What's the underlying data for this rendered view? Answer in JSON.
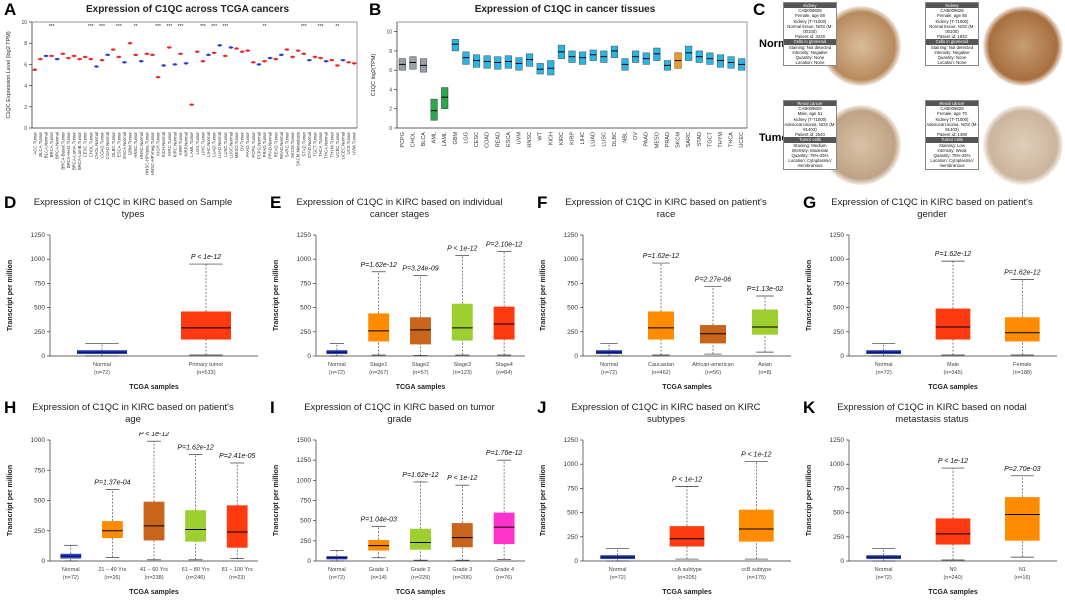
{
  "chart_data": [
    {
      "type": "strip",
      "panel": "A",
      "title": "Expression of C1QC across TCGA cancers",
      "ylabel": "C1QC Expression Level (log2 TPM)",
      "categories": [
        "ACC.Tumor",
        "BLCA.Tumor",
        "BLCA.Normal",
        "BRCA.Tumor",
        "BRCA.Normal",
        "BRCA-Basal.Tumor",
        "BRCA-Her2.Tumor",
        "BRCA-LumA.Tumor",
        "BRCA-LumB.Tumor",
        "CESC.Tumor",
        "CHOL.Tumor",
        "CHOL.Normal",
        "COAD.Tumor",
        "COAD.Normal",
        "DLBC.Tumor",
        "ESCA.Tumor",
        "ESCA.Normal",
        "GBM.Tumor",
        "HNSC.Tumor",
        "HNSC.Normal",
        "HNSC-HPVpos.Tumor",
        "HNSC-HPVneg.Tumor",
        "KICH.Tumor",
        "KICH.Normal",
        "KIRC.Tumor",
        "KIRC.Normal",
        "KIRP.Tumor",
        "KIRP.Normal",
        "LAML.Tumor",
        "LGG.Tumor",
        "LIHC.Tumor",
        "LIHC.Normal",
        "LUAD.Tumor",
        "LUAD.Normal",
        "LUSC.Tumor",
        "LUSC.Normal",
        "MESO.Tumor",
        "OV.Tumor",
        "PAAD.Tumor",
        "PCPG.Tumor",
        "PCPG.Normal",
        "PRAD.Tumor",
        "PRAD.Normal",
        "READ.Tumor",
        "READ.Normal",
        "SARC.Tumor",
        "SKCM.Tumor",
        "SKCM.Metastasis",
        "STAD.Tumor",
        "STAD.Normal",
        "TGCT.Tumor",
        "THCA.Tumor",
        "THCA.Normal",
        "THYM.Tumor",
        "UCEC.Tumor",
        "UCEC.Normal",
        "UCS.Tumor",
        "UVM.Tumor"
      ],
      "values": [
        5.5,
        6.5,
        6.8,
        6.8,
        6.5,
        7.0,
        6.6,
        6.8,
        6.5,
        6.7,
        6.5,
        5.8,
        6.4,
        6.9,
        7.4,
        6.7,
        6.2,
        8.0,
        6.9,
        6.3,
        7.0,
        6.9,
        4.8,
        5.9,
        7.6,
        6.0,
        7.0,
        6.1,
        2.2,
        7.2,
        6.3,
        6.9,
        7.1,
        7.8,
        6.8,
        7.6,
        7.5,
        7.2,
        7.3,
        6.2,
        6.0,
        6.3,
        6.6,
        6.5,
        6.9,
        7.4,
        6.7,
        7.3,
        7.0,
        6.4,
        6.7,
        6.6,
        6.3,
        6.4,
        5.9,
        6.4,
        6.2,
        6.1
      ],
      "significance": [
        null,
        null,
        null,
        "***",
        null,
        null,
        null,
        null,
        null,
        null,
        "***",
        null,
        "***",
        null,
        null,
        "***",
        null,
        null,
        "**",
        null,
        null,
        null,
        "***",
        null,
        "***",
        null,
        "***",
        null,
        null,
        null,
        "***",
        null,
        "***",
        null,
        "***",
        null,
        null,
        null,
        null,
        null,
        null,
        "**",
        null,
        null,
        null,
        null,
        null,
        null,
        "***",
        null,
        null,
        "***",
        null,
        null,
        "**",
        null,
        null,
        null
      ],
      "tumor_color": "#e8282b",
      "normal_color": "#2b3fd6",
      "ylim": [
        0,
        10
      ],
      "yticks": [
        0,
        2,
        4,
        6,
        8,
        10
      ]
    },
    {
      "type": "box",
      "panel": "B",
      "title": "Expression of C1QC in cancer tissues",
      "ylabel": "C1QC log2(TPM)",
      "categories": [
        "PCPG",
        "CHOL",
        "BLCA",
        "AML",
        "LAML",
        "GBM",
        "LGG",
        "CESC",
        "COAD",
        "READ",
        "ESCA",
        "UVM",
        "HNSC",
        "WT",
        "KICH",
        "KIRC",
        "KIRP",
        "LIHC",
        "LUAD",
        "LUSC",
        "DLBC",
        "NBL",
        "OV",
        "PAAD",
        "MESO",
        "PRAD",
        "SKCM",
        "SARC",
        "STAD",
        "TGCT",
        "THYM",
        "THCA",
        "UCEC"
      ],
      "q1": [
        6.0,
        6.1,
        5.8,
        0.8,
        2.0,
        8.0,
        6.6,
        6.3,
        6.2,
        6.1,
        6.2,
        6.0,
        6.4,
        5.6,
        5.5,
        7.2,
        6.8,
        6.6,
        7.0,
        6.8,
        7.3,
        6.0,
        6.8,
        6.6,
        7.0,
        6.0,
        6.2,
        7.0,
        6.8,
        6.6,
        6.3,
        6.2,
        6.0
      ],
      "median": [
        6.6,
        6.8,
        6.5,
        1.8,
        3.2,
        8.7,
        7.3,
        7.0,
        6.9,
        6.8,
        6.9,
        6.7,
        7.1,
        6.1,
        6.2,
        7.9,
        7.4,
        7.3,
        7.6,
        7.4,
        8.0,
        6.6,
        7.4,
        7.2,
        7.7,
        6.5,
        7.0,
        7.8,
        7.4,
        7.2,
        7.0,
        6.8,
        6.6
      ],
      "q3": [
        7.2,
        7.4,
        7.2,
        3.0,
        4.2,
        9.2,
        7.9,
        7.6,
        7.5,
        7.4,
        7.5,
        7.3,
        7.7,
        6.7,
        7.0,
        8.6,
        8.0,
        7.9,
        8.1,
        8.0,
        8.5,
        7.2,
        8.0,
        7.8,
        8.3,
        7.0,
        7.8,
        8.5,
        8.0,
        7.8,
        7.6,
        7.4,
        7.2
      ],
      "colors": [
        "#9aa0a6",
        "#9aa0a6",
        "#9aa0a6",
        "#2aa84a",
        "#2aa84a",
        "#29b6e6",
        "#29b6e6",
        "#29b6e6",
        "#29b6e6",
        "#29b6e6",
        "#29b6e6",
        "#29b6e6",
        "#29b6e6",
        "#29b6e6",
        "#29b6e6",
        "#29b6e6",
        "#29b6e6",
        "#29b6e6",
        "#29b6e6",
        "#29b6e6",
        "#29b6e6",
        "#29b6e6",
        "#29b6e6",
        "#29b6e6",
        "#29b6e6",
        "#29b6e6",
        "#f29a1d",
        "#29b6e6",
        "#29b6e6",
        "#29b6e6",
        "#29b6e6",
        "#29b6e6",
        "#29b6e6"
      ],
      "ylim": [
        0,
        11
      ],
      "yticks": [
        0,
        2,
        4,
        6,
        8,
        10
      ]
    },
    {
      "type": "box",
      "panel": "D",
      "title": "Expression of C1QC in KIRC based on Sample types",
      "xlabel": "TCGA samples",
      "ylabel": "Transcript per million",
      "categories": [
        "Normal",
        "Primary tumor"
      ],
      "n_labels": [
        "(n=72)",
        "(n=533)"
      ],
      "colors": [
        "#2e46d1",
        "#ff3a10"
      ],
      "min": [
        0,
        10
      ],
      "q1": [
        20,
        170
      ],
      "median": [
        40,
        290
      ],
      "q3": [
        60,
        460
      ],
      "max": [
        130,
        950
      ],
      "p_labels": [
        null,
        "P < 1e-12"
      ],
      "ylim": [
        0,
        1250
      ],
      "yticks": [
        0,
        250,
        500,
        750,
        1000,
        1250
      ]
    },
    {
      "type": "box",
      "panel": "E",
      "title": "Expression of C1QC in KIRC based on individual cancer stages",
      "xlabel": "TCGA samples",
      "ylabel": "Transcript per million",
      "categories": [
        "Normal",
        "Stage1",
        "Stage2",
        "Stage3",
        "Stage4"
      ],
      "n_labels": [
        "(n=72)",
        "(n=267)",
        "(n=57)",
        "(n=123)",
        "(n=84)"
      ],
      "colors": [
        "#2e46d1",
        "#ff8c00",
        "#c8651b",
        "#9ccf2f",
        "#ff3a10"
      ],
      "min": [
        0,
        10,
        5,
        10,
        10
      ],
      "q1": [
        20,
        150,
        120,
        160,
        170
      ],
      "median": [
        40,
        260,
        270,
        290,
        330
      ],
      "q3": [
        60,
        440,
        400,
        540,
        510
      ],
      "max": [
        130,
        870,
        830,
        1040,
        1080
      ],
      "p_labels": [
        null,
        "P=1.62e-12",
        "P=3.24e-09",
        "P < 1e-12",
        "P=2.10e-12"
      ],
      "ylim": [
        0,
        1250
      ],
      "yticks": [
        0,
        250,
        500,
        750,
        1000,
        1250
      ]
    },
    {
      "type": "box",
      "panel": "F",
      "title": "Expression of C1QC in KIRC based on patient's race",
      "xlabel": "TCGA samples",
      "ylabel": "Transcript per million",
      "categories": [
        "Normal",
        "Caucasian",
        "African-american",
        "Asian"
      ],
      "n_labels": [
        "(n=72)",
        "(n=462)",
        "(n=56)",
        "(n=8)"
      ],
      "colors": [
        "#2e46d1",
        "#ff8c00",
        "#c8651b",
        "#9ccf2f"
      ],
      "min": [
        0,
        10,
        20,
        40
      ],
      "q1": [
        20,
        170,
        130,
        220
      ],
      "median": [
        40,
        290,
        230,
        300
      ],
      "q3": [
        60,
        460,
        320,
        480
      ],
      "max": [
        130,
        960,
        720,
        620
      ],
      "p_labels": [
        null,
        "P=1.62e-12",
        "P=2.27e-06",
        "P=1.13e-02"
      ],
      "ylim": [
        0,
        1250
      ],
      "yticks": [
        0,
        250,
        500,
        750,
        1000,
        1250
      ]
    },
    {
      "type": "box",
      "panel": "G",
      "title": "Expression of C1QC in KIRC based on patient's gender",
      "xlabel": "TCGA samples",
      "ylabel": "Transcript per million",
      "categories": [
        "Normal",
        "Male",
        "Female"
      ],
      "n_labels": [
        "(n=72)",
        "(n=345)",
        "(n=188)"
      ],
      "colors": [
        "#2e46d1",
        "#ff3a10",
        "#ff8c00"
      ],
      "min": [
        0,
        10,
        10
      ],
      "q1": [
        20,
        170,
        150
      ],
      "median": [
        40,
        300,
        240
      ],
      "q3": [
        60,
        490,
        400
      ],
      "max": [
        130,
        980,
        790
      ],
      "p_labels": [
        null,
        "P=1.62e-12",
        "P=1.62e-12"
      ],
      "ylim": [
        0,
        1250
      ],
      "yticks": [
        0,
        250,
        500,
        750,
        1000,
        1250
      ]
    },
    {
      "type": "box",
      "panel": "H",
      "title": "Expression of C1QC in KIRC based on patient's age",
      "xlabel": "TCGA samples",
      "ylabel": "Transcript per million",
      "categories": [
        "Normal",
        "21 – 40 Yrs",
        "41 – 60 Yrs",
        "61 – 80 Yrs",
        "81 – 100 Yrs"
      ],
      "n_labels": [
        "(n=72)",
        "(n=26)",
        "(n=238)",
        "(n=246)",
        "(n=23)"
      ],
      "colors": [
        "#2e46d1",
        "#ff8c00",
        "#c8651b",
        "#9ccf2f",
        "#ff3a10"
      ],
      "min": [
        0,
        30,
        10,
        10,
        20
      ],
      "q1": [
        20,
        190,
        170,
        160,
        110
      ],
      "median": [
        40,
        250,
        290,
        260,
        240
      ],
      "q3": [
        60,
        330,
        490,
        420,
        460
      ],
      "max": [
        130,
        590,
        990,
        880,
        810
      ],
      "p_labels": [
        null,
        "P=1.37e-04",
        "P < 1e-12",
        "P=1.62e-12",
        "P=2.41e-05"
      ],
      "ylim": [
        0,
        1000
      ],
      "yticks": [
        0,
        250,
        500,
        750,
        1000
      ]
    },
    {
      "type": "box",
      "panel": "I",
      "title": "Expression of C1QC in KIRC based on tumor grade",
      "xlabel": "TCGA samples",
      "ylabel": "Transcript per million",
      "categories": [
        "Normal",
        "Grade 1",
        "Grade 2",
        "Grade 3",
        "Grade 4"
      ],
      "n_labels": [
        "(n=72)",
        "(n=14)",
        "(n=229)",
        "(n=206)",
        "(n=76)"
      ],
      "colors": [
        "#2e46d1",
        "#ff8c00",
        "#9ccf2f",
        "#c8651b",
        "#ff33cc"
      ],
      "min": [
        0,
        40,
        10,
        10,
        20
      ],
      "q1": [
        20,
        130,
        140,
        170,
        210
      ],
      "median": [
        40,
        190,
        230,
        290,
        420
      ],
      "q3": [
        60,
        260,
        400,
        470,
        600
      ],
      "max": [
        130,
        430,
        980,
        940,
        1250
      ],
      "p_labels": [
        null,
        "P=1.04e-03",
        "P=1.62e-12",
        "P < 1e-12",
        "P=1.76e-12"
      ],
      "ylim": [
        0,
        1500
      ],
      "yticks": [
        0,
        250,
        500,
        750,
        1000,
        1250,
        1500
      ]
    },
    {
      "type": "box",
      "panel": "J",
      "title": "Expression of C1QC in KIRC based on KIRC subtypes",
      "xlabel": "TCGA samples",
      "ylabel": "Transcript per million",
      "categories": [
        "Normal",
        "ccA subtype",
        "ccB subtype"
      ],
      "n_labels": [
        "(n=72)",
        "(n=205)",
        "(n=175)"
      ],
      "colors": [
        "#2e46d1",
        "#ff3a10",
        "#ff8c00"
      ],
      "min": [
        0,
        20,
        20
      ],
      "q1": [
        20,
        150,
        200
      ],
      "median": [
        40,
        230,
        330
      ],
      "q3": [
        60,
        360,
        530
      ],
      "max": [
        130,
        770,
        1030
      ],
      "p_labels": [
        null,
        "P < 1e-12",
        "P < 1e-12"
      ],
      "ylim": [
        0,
        1250
      ],
      "yticks": [
        0,
        250,
        500,
        750,
        1000,
        1250
      ]
    },
    {
      "type": "box",
      "panel": "K",
      "title": "Expression of C1QC in KIRC based on nodal metastasis status",
      "xlabel": "TCGA samples",
      "ylabel": "Transcript per million",
      "categories": [
        "Normal",
        "N0",
        "N1"
      ],
      "n_labels": [
        "(n=72)",
        "(n=240)",
        "(n=16)"
      ],
      "colors": [
        "#2e46d1",
        "#ff3a10",
        "#ff8c00"
      ],
      "min": [
        0,
        10,
        40
      ],
      "q1": [
        20,
        170,
        210
      ],
      "median": [
        40,
        280,
        480
      ],
      "q3": [
        60,
        440,
        660
      ],
      "max": [
        130,
        960,
        880
      ],
      "p_labels": [
        null,
        "P < 1e-12",
        "P=2.70e-03"
      ],
      "ylim": [
        0,
        1250
      ],
      "yticks": [
        0,
        250,
        500,
        750,
        1000,
        1250
      ]
    }
  ],
  "panel_c": {
    "panel": "C",
    "rows": [
      "Normal",
      "Tumor"
    ],
    "cards": [
      {
        "lines": [
          "Kidney",
          "CAB009828",
          "Female, age 58",
          "Kidney (T-71000)",
          "Normal tissue, NOS (M-00100)",
          "Patient id: 3229",
          "Cells in glomeruli",
          "Staining: Not detected",
          "Intensity: Negative",
          "Quantity: None",
          "Location: None"
        ]
      },
      {
        "lines": [
          "Kidney",
          "CAB009828",
          "Female, age 56",
          "Kidney (T-71000)",
          "Normal tissue, NOS (M-00100)",
          "Patient id: 1933",
          "Cells in glomeruli",
          "Staining: Not detected",
          "Intensity: Negative",
          "Quantity: None",
          "Location: None"
        ]
      },
      {
        "lines": [
          "Renal cancer",
          "CAB009828",
          "Male, age 61",
          "Kidney (T-71000)",
          "Adenocarcinoma, NOS (M-81403)",
          "Patient id: 2540",
          "Tumor cells",
          "Staining: Medium",
          "Intensity: Moderate",
          "Quantity: 75%-25%",
          "Location: Cytoplasmic/ membranous"
        ]
      },
      {
        "lines": [
          "Renal cancer",
          "CAB009828",
          "Female, age 70",
          "Kidney (T-71000)",
          "Adenocarcinoma, NOS (M-81403)",
          "Patient id: 1498",
          "Tumor cells",
          "Staining: Low",
          "Intensity: Weak",
          "Quantity: 75%-25%",
          "Location: Cytoplasmic/ membranous"
        ]
      }
    ]
  }
}
